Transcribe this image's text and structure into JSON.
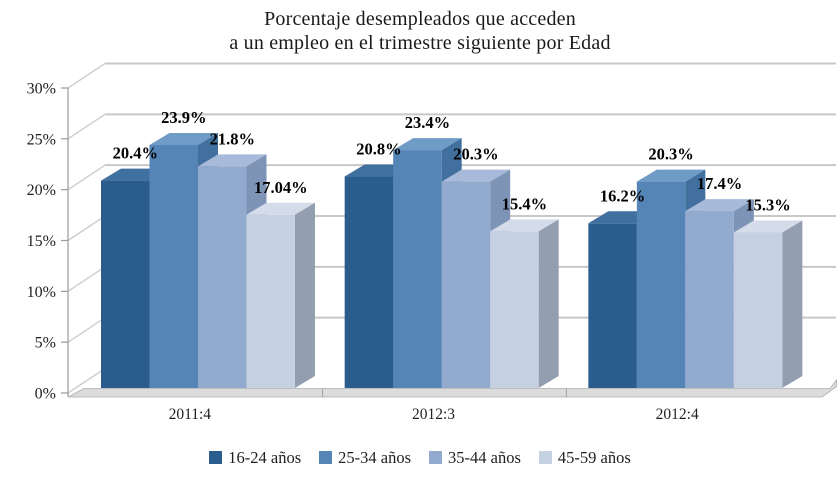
{
  "title": {
    "line1": "Porcentaje desempleados que acceden",
    "line2": "a un empleo en el trimestre siguiente por Edad"
  },
  "chart_data": {
    "type": "bar",
    "style": "3d-clustered-column",
    "title": "Porcentaje desempleados que acceden a un empleo en el trimestre siguiente por Edad",
    "categories": [
      "2011:4",
      "2012:3",
      "2012:4"
    ],
    "series": [
      {
        "name": "16-24 años",
        "values": [
          20.4,
          20.8,
          16.2
        ],
        "data_labels": [
          "20.4%",
          "20.8%",
          "16.2%"
        ],
        "colors": {
          "front": "#2a5d8d",
          "top": "#40709f",
          "side": "#1d4a74"
        }
      },
      {
        "name": "25-34 años",
        "values": [
          23.9,
          23.4,
          20.3
        ],
        "data_labels": [
          "23.9%",
          "23.4%",
          "20.3%"
        ],
        "colors": {
          "front": "#5585b7",
          "top": "#6f9bc7",
          "side": "#41709e"
        }
      },
      {
        "name": "35-44 años",
        "values": [
          21.8,
          20.3,
          17.4
        ],
        "data_labels": [
          "21.8%",
          "20.3%",
          "17.4%"
        ],
        "colors": {
          "front": "#93aacf",
          "top": "#a8bad9",
          "side": "#7e94b7"
        }
      },
      {
        "name": "45-59 años",
        "values": [
          17.04,
          15.4,
          15.3
        ],
        "data_labels": [
          "17.04%",
          "15.4%",
          "15.3%"
        ],
        "colors": {
          "front": "#c5d0e1",
          "top": "#d4dcea",
          "side": "#939eb1"
        }
      }
    ],
    "xlabel": "",
    "ylabel": "",
    "ylim": [
      0,
      30
    ],
    "ytick_step": 5,
    "ytick_labels": [
      "0%",
      "5%",
      "10%",
      "15%",
      "20%",
      "25%",
      "30%"
    ],
    "grid": true,
    "legend_position": "bottom",
    "background_color": "#ffffff",
    "gridline_color": "#c8c8c8",
    "floor_color": "#dcdcdc"
  }
}
